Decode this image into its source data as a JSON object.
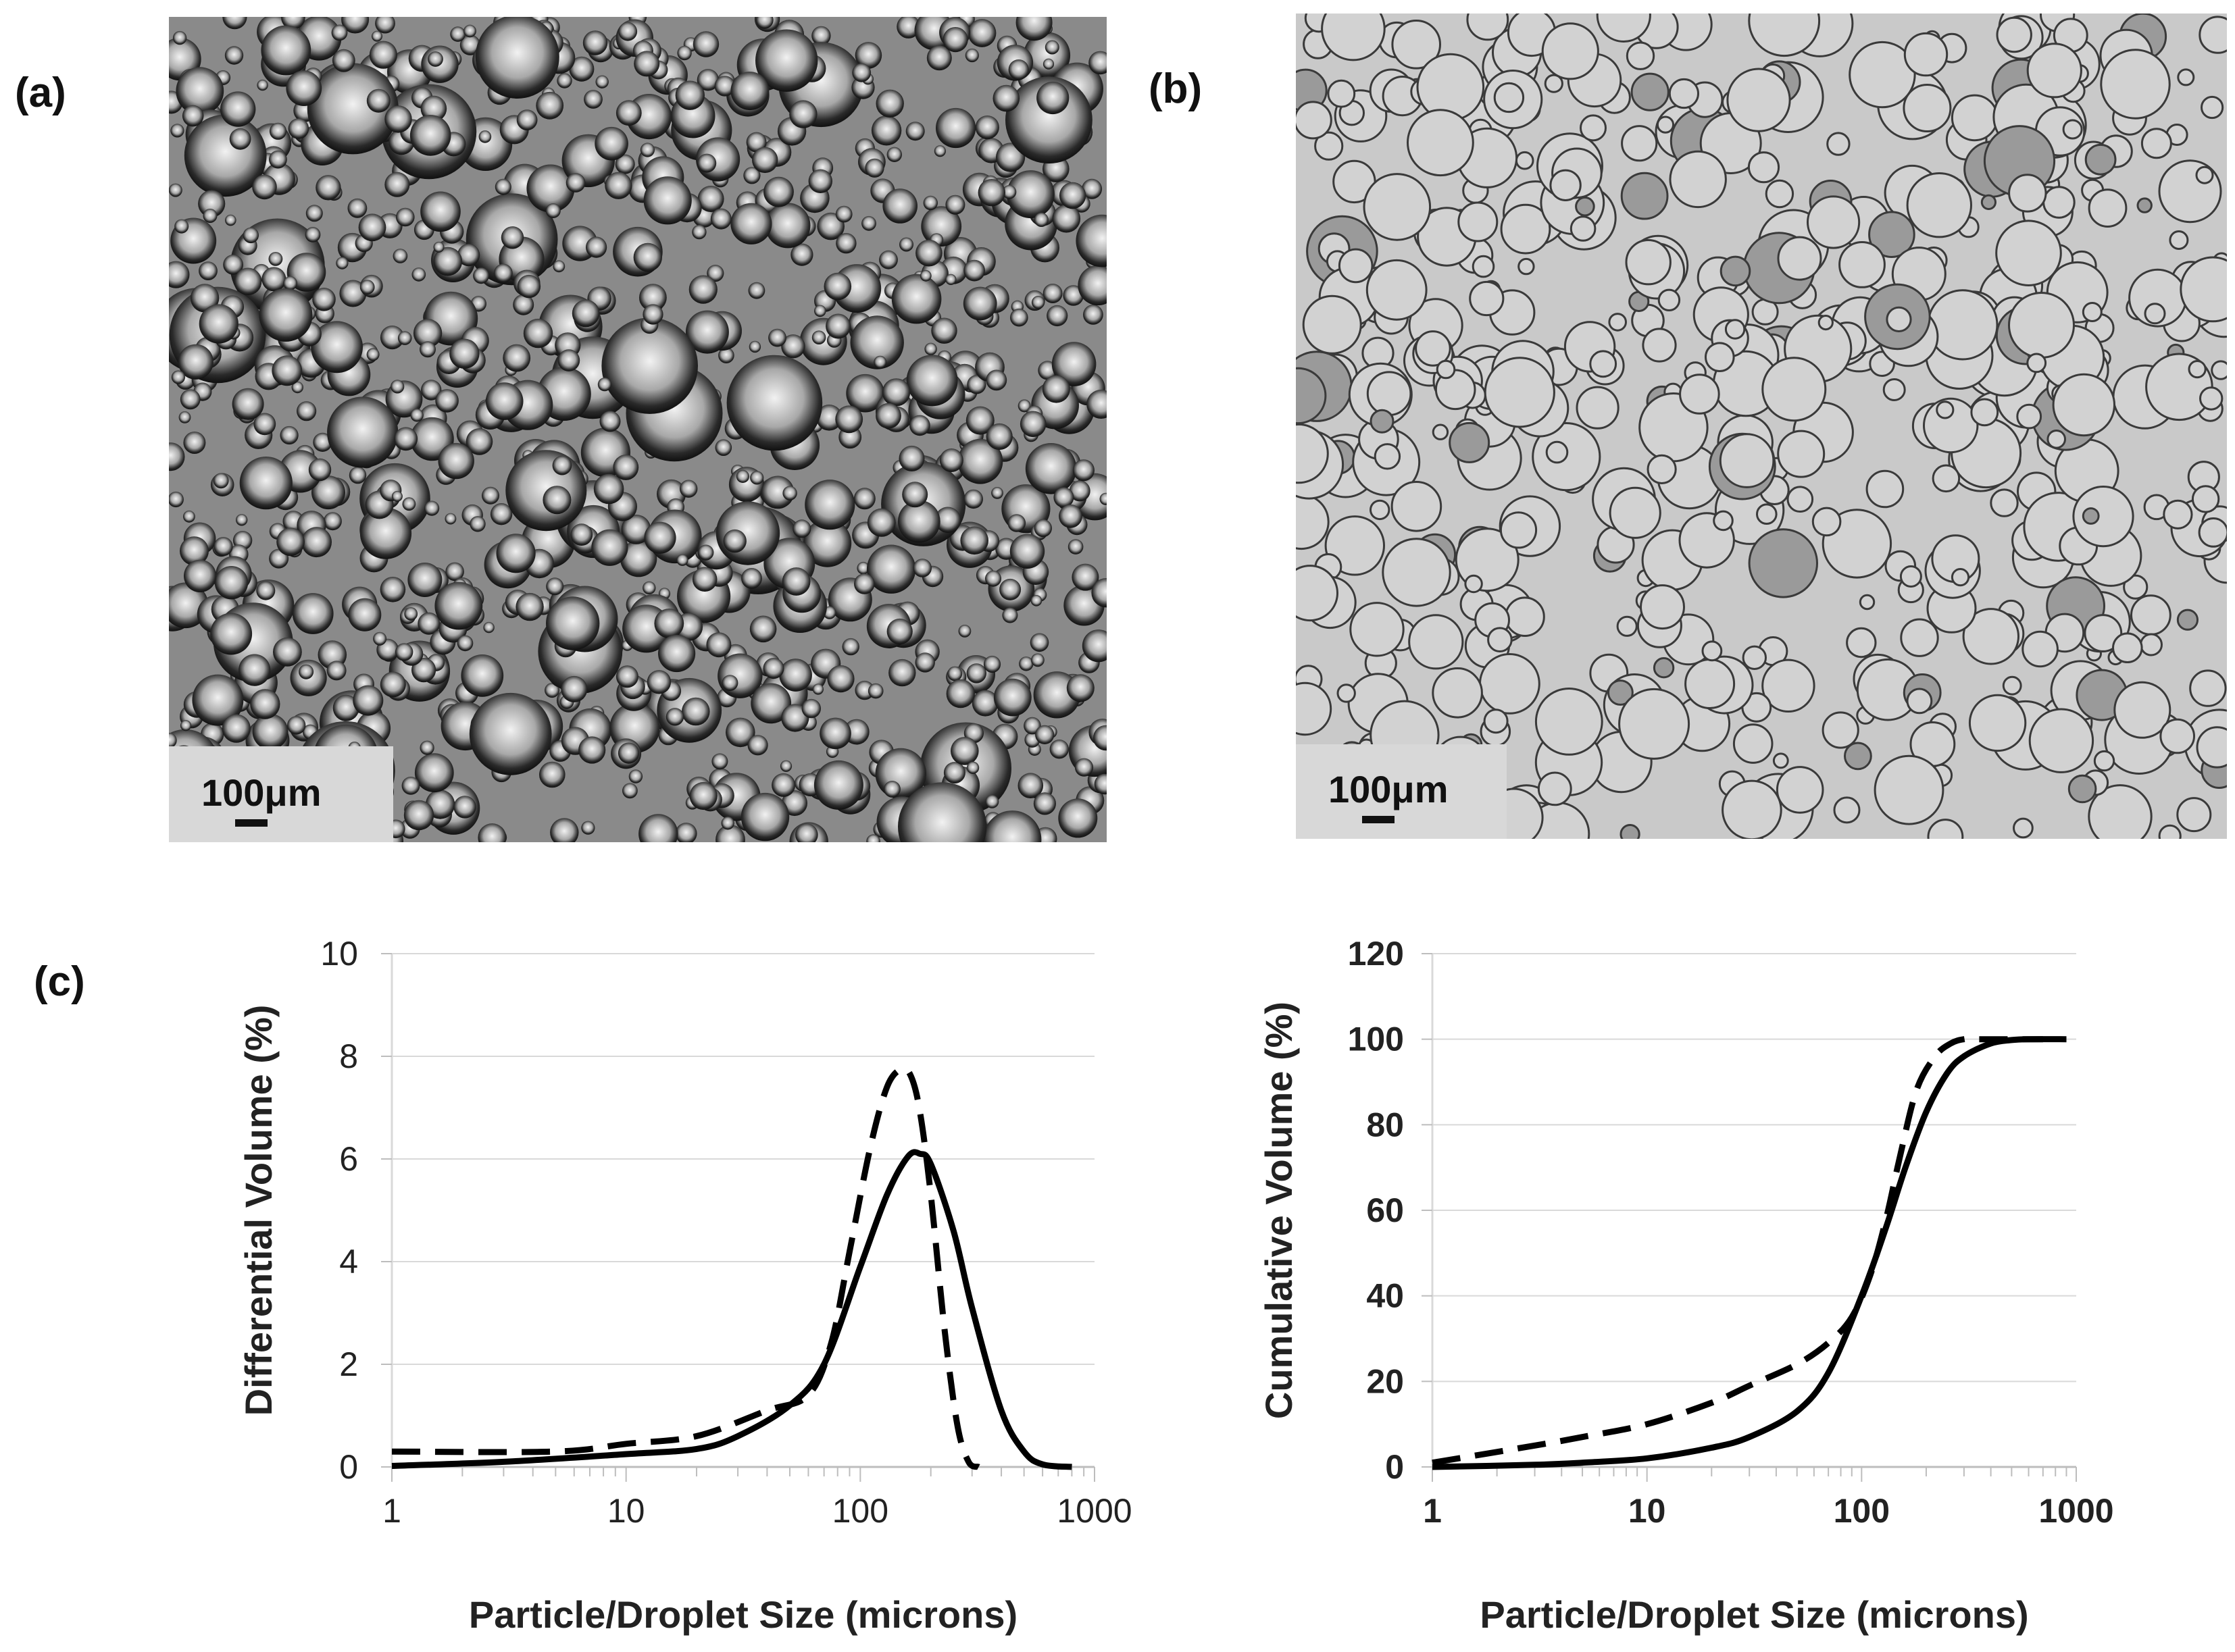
{
  "panels": {
    "a": {
      "label": "(a)",
      "scale_text": "100μm"
    },
    "b": {
      "label": "(b)",
      "scale_text": "100μm"
    },
    "c": {
      "label": "(c)"
    }
  },
  "colors": {
    "micrograph_a_bg": "#8a8a8a",
    "micrograph_b_bg": "#c9c9c9",
    "line": "#000000",
    "grid": "#d9d9d9",
    "scale_box": "#d8d8d8"
  },
  "chart_data": [
    {
      "type": "line",
      "xscale": "log",
      "xlim": [
        1,
        1000
      ],
      "ylim": [
        0,
        10
      ],
      "x_ticks": [
        "1",
        "10",
        "100",
        "1000"
      ],
      "y_ticks": [
        "0",
        "2",
        "4",
        "6",
        "8",
        "10"
      ],
      "xlabel": "Particle/Droplet Size (microns)",
      "ylabel": "Differential Volume  (%)",
      "grid": "horizontal",
      "series": [
        {
          "style": "solid",
          "x": [
            1,
            3,
            10,
            20,
            30,
            50,
            70,
            100,
            130,
            160,
            180,
            200,
            250,
            300,
            400,
            500,
            600,
            800
          ],
          "y": [
            0.02,
            0.1,
            0.25,
            0.35,
            0.6,
            1.2,
            2.0,
            3.9,
            5.3,
            6.05,
            6.1,
            5.9,
            4.6,
            3.1,
            1.1,
            0.3,
            0.05,
            0
          ]
        },
        {
          "style": "dashed",
          "x": [
            1,
            5,
            10,
            20,
            40,
            60,
            75,
            90,
            110,
            130,
            150,
            165,
            180,
            200,
            230,
            260,
            290,
            320
          ],
          "y": [
            0.3,
            0.3,
            0.45,
            0.6,
            1.1,
            1.4,
            2.4,
            4.2,
            6.2,
            7.4,
            7.75,
            7.6,
            6.9,
            5.3,
            2.6,
            0.8,
            0.1,
            0
          ]
        }
      ]
    },
    {
      "type": "line",
      "xscale": "log",
      "xlim": [
        1,
        1000
      ],
      "ylim": [
        0,
        120
      ],
      "x_ticks": [
        "1",
        "10",
        "100",
        "1000"
      ],
      "y_ticks": [
        "0",
        "20",
        "40",
        "60",
        "80",
        "100",
        "120"
      ],
      "xlabel": "Particle/Droplet Size (microns)",
      "ylabel": "Cumulative Volume  (%)",
      "grid": "horizontal",
      "series": [
        {
          "style": "solid",
          "x": [
            1,
            3,
            5,
            10,
            20,
            30,
            50,
            70,
            100,
            130,
            160,
            200,
            250,
            300,
            400,
            500,
            600,
            900
          ],
          "y": [
            0,
            0.5,
            1.0,
            2.0,
            4.5,
            7.0,
            13,
            22,
            40,
            56,
            70,
            83,
            92,
            96,
            99,
            99.8,
            100,
            100
          ]
        },
        {
          "style": "dashed",
          "x": [
            1,
            3,
            5,
            10,
            20,
            30,
            50,
            70,
            90,
            110,
            130,
            150,
            180,
            220,
            260,
            300,
            350,
            700
          ],
          "y": [
            1,
            5,
            7,
            10,
            15,
            19,
            24,
            29,
            35,
            45,
            58,
            72,
            88,
            96,
            99,
            100,
            100,
            100
          ]
        }
      ]
    }
  ]
}
